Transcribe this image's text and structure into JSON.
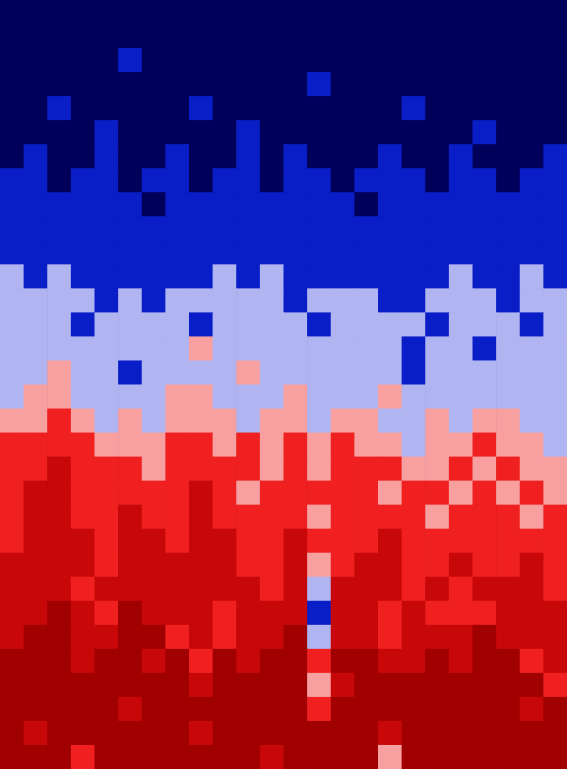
{
  "chart_data": {
    "type": "heatmap",
    "tick_labels": false,
    "zlim": [
      0,
      6
    ],
    "colors": [
      "#00005a",
      "#0a1ec8",
      "#b0b4f0",
      "#f8a0a0",
      "#f02020",
      "#c80808",
      "#a00000"
    ],
    "cells": [
      [
        0,
        0,
        0,
        0,
        0,
        0,
        0,
        0,
        0,
        0,
        0,
        0,
        0,
        0,
        0,
        0,
        0,
        0,
        0,
        0,
        0,
        0,
        0,
        0
      ],
      [
        0,
        0,
        0,
        0,
        0,
        0,
        0,
        0,
        0,
        0,
        0,
        0,
        0,
        0,
        0,
        0,
        0,
        0,
        0,
        0,
        0,
        0,
        0,
        0
      ],
      [
        0,
        0,
        0,
        0,
        0,
        1,
        0,
        0,
        0,
        0,
        0,
        0,
        0,
        0,
        0,
        0,
        0,
        0,
        0,
        0,
        0,
        0,
        0,
        0
      ],
      [
        0,
        0,
        0,
        0,
        0,
        0,
        0,
        0,
        0,
        0,
        0,
        0,
        0,
        1,
        0,
        0,
        0,
        0,
        0,
        0,
        0,
        0,
        0,
        0
      ],
      [
        0,
        0,
        1,
        0,
        0,
        0,
        0,
        0,
        1,
        0,
        0,
        0,
        0,
        0,
        0,
        0,
        0,
        1,
        0,
        0,
        0,
        0,
        0,
        0
      ],
      [
        0,
        0,
        0,
        0,
        1,
        0,
        0,
        0,
        0,
        0,
        1,
        0,
        0,
        0,
        0,
        0,
        0,
        0,
        0,
        0,
        1,
        0,
        0,
        0
      ],
      [
        0,
        1,
        0,
        0,
        1,
        0,
        0,
        1,
        0,
        0,
        1,
        0,
        1,
        0,
        0,
        0,
        1,
        0,
        0,
        1,
        0,
        0,
        0,
        1
      ],
      [
        1,
        1,
        0,
        1,
        1,
        0,
        1,
        1,
        0,
        1,
        1,
        0,
        1,
        1,
        0,
        1,
        1,
        1,
        0,
        1,
        1,
        0,
        1,
        1
      ],
      [
        1,
        1,
        1,
        1,
        1,
        1,
        0,
        1,
        1,
        1,
        1,
        1,
        1,
        1,
        1,
        0,
        1,
        1,
        1,
        1,
        1,
        1,
        1,
        1
      ],
      [
        1,
        1,
        1,
        1,
        1,
        1,
        1,
        1,
        1,
        1,
        1,
        1,
        1,
        1,
        1,
        1,
        1,
        1,
        1,
        1,
        1,
        1,
        1,
        1
      ],
      [
        1,
        1,
        1,
        1,
        1,
        1,
        1,
        1,
        1,
        1,
        1,
        1,
        1,
        1,
        1,
        1,
        1,
        1,
        1,
        1,
        1,
        1,
        1,
        1
      ],
      [
        2,
        1,
        2,
        1,
        1,
        1,
        1,
        1,
        1,
        2,
        1,
        2,
        1,
        1,
        1,
        1,
        1,
        1,
        1,
        2,
        1,
        1,
        2,
        1
      ],
      [
        2,
        2,
        2,
        2,
        1,
        2,
        1,
        2,
        2,
        2,
        2,
        2,
        1,
        2,
        2,
        2,
        1,
        1,
        2,
        2,
        2,
        1,
        2,
        2
      ],
      [
        2,
        2,
        2,
        1,
        2,
        2,
        2,
        2,
        1,
        2,
        2,
        2,
        2,
        1,
        2,
        2,
        2,
        2,
        1,
        2,
        2,
        2,
        1,
        2
      ],
      [
        2,
        2,
        2,
        2,
        2,
        2,
        2,
        2,
        3,
        2,
        2,
        2,
        2,
        2,
        2,
        2,
        2,
        1,
        2,
        2,
        1,
        2,
        2,
        2
      ],
      [
        2,
        2,
        3,
        2,
        2,
        1,
        2,
        2,
        2,
        2,
        3,
        2,
        2,
        2,
        2,
        2,
        2,
        1,
        2,
        2,
        2,
        2,
        2,
        2
      ],
      [
        2,
        3,
        3,
        2,
        2,
        2,
        2,
        3,
        3,
        2,
        2,
        2,
        3,
        2,
        2,
        2,
        3,
        2,
        2,
        2,
        2,
        2,
        2,
        2
      ],
      [
        3,
        3,
        4,
        3,
        2,
        3,
        2,
        3,
        3,
        3,
        2,
        3,
        3,
        2,
        3,
        3,
        2,
        2,
        3,
        2,
        3,
        3,
        2,
        2
      ],
      [
        4,
        4,
        4,
        4,
        3,
        3,
        3,
        4,
        4,
        3,
        4,
        3,
        4,
        3,
        4,
        3,
        3,
        2,
        3,
        3,
        4,
        3,
        3,
        2
      ],
      [
        4,
        4,
        5,
        4,
        4,
        4,
        3,
        4,
        4,
        4,
        4,
        3,
        4,
        3,
        4,
        4,
        4,
        3,
        3,
        4,
        3,
        4,
        3,
        3
      ],
      [
        4,
        5,
        5,
        4,
        4,
        4,
        4,
        4,
        5,
        4,
        3,
        4,
        4,
        4,
        4,
        4,
        3,
        4,
        4,
        3,
        4,
        3,
        4,
        3
      ],
      [
        4,
        5,
        5,
        4,
        4,
        5,
        4,
        4,
        5,
        4,
        4,
        4,
        4,
        3,
        4,
        4,
        4,
        4,
        3,
        4,
        4,
        4,
        3,
        4
      ],
      [
        4,
        5,
        5,
        5,
        4,
        5,
        5,
        4,
        5,
        5,
        4,
        4,
        5,
        4,
        4,
        4,
        5,
        4,
        4,
        4,
        4,
        4,
        4,
        4
      ],
      [
        5,
        5,
        5,
        5,
        4,
        5,
        5,
        5,
        5,
        5,
        4,
        4,
        5,
        3,
        4,
        5,
        5,
        4,
        4,
        5,
        4,
        4,
        5,
        4
      ],
      [
        5,
        5,
        5,
        4,
        5,
        5,
        5,
        5,
        5,
        5,
        5,
        4,
        5,
        2,
        5,
        5,
        5,
        4,
        5,
        4,
        5,
        5,
        5,
        4
      ],
      [
        5,
        5,
        6,
        5,
        4,
        6,
        5,
        5,
        5,
        4,
        5,
        5,
        5,
        1,
        5,
        5,
        4,
        5,
        4,
        4,
        4,
        5,
        5,
        5
      ],
      [
        5,
        6,
        6,
        5,
        5,
        6,
        6,
        4,
        5,
        4,
        5,
        5,
        6,
        2,
        5,
        5,
        4,
        5,
        5,
        5,
        6,
        5,
        5,
        5
      ],
      [
        6,
        6,
        6,
        5,
        6,
        6,
        5,
        6,
        4,
        6,
        5,
        6,
        6,
        4,
        6,
        6,
        5,
        5,
        6,
        5,
        6,
        6,
        4,
        5
      ],
      [
        6,
        6,
        6,
        6,
        6,
        6,
        6,
        6,
        5,
        6,
        6,
        6,
        6,
        3,
        5,
        6,
        6,
        6,
        6,
        6,
        6,
        6,
        6,
        4
      ],
      [
        6,
        6,
        6,
        6,
        6,
        5,
        6,
        6,
        6,
        6,
        6,
        6,
        6,
        4,
        6,
        6,
        6,
        6,
        6,
        6,
        6,
        6,
        5,
        6
      ],
      [
        6,
        5,
        6,
        6,
        6,
        6,
        6,
        6,
        5,
        6,
        6,
        6,
        6,
        6,
        6,
        6,
        5,
        6,
        6,
        6,
        6,
        6,
        6,
        6
      ],
      [
        6,
        6,
        6,
        4,
        6,
        6,
        6,
        6,
        6,
        6,
        6,
        5,
        6,
        6,
        6,
        6,
        3,
        6,
        6,
        6,
        6,
        6,
        6,
        6
      ]
    ]
  }
}
